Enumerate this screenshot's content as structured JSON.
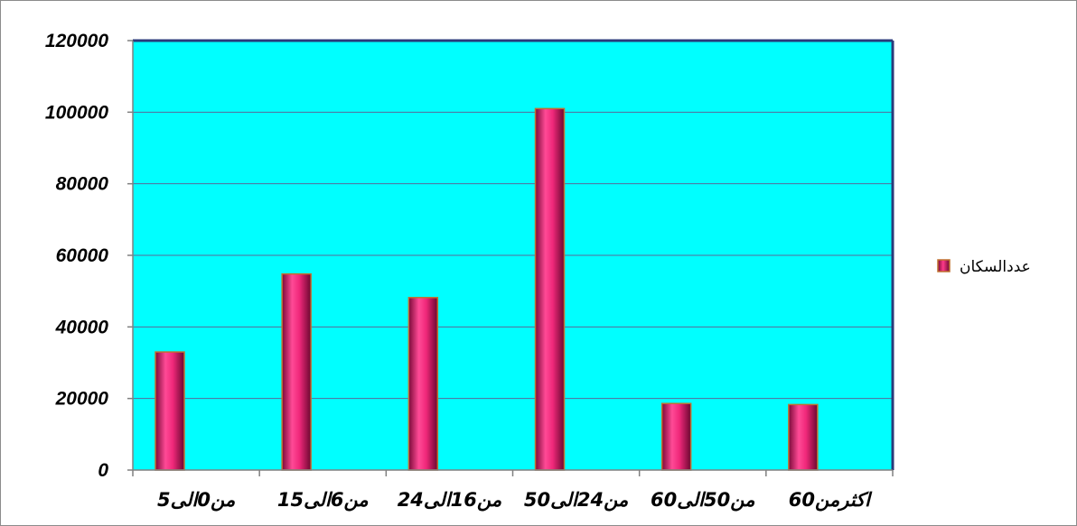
{
  "chart_data": {
    "type": "bar",
    "categories": [
      "من0الى5",
      "من6الى15",
      "من16الى24",
      "من24الى50",
      "من50الى60",
      "اكثرمن60"
    ],
    "series": [
      {
        "name": "عددالسكان",
        "values": [
          33000,
          54800,
          48200,
          101000,
          18600,
          18300
        ]
      }
    ],
    "ylim": [
      0,
      120000
    ],
    "yticks": [
      0,
      20000,
      40000,
      60000,
      80000,
      100000,
      120000
    ],
    "grid": true,
    "legend_position": "right",
    "colors": {
      "plot_background": "#00ffff",
      "bar_fill": "#e8206e",
      "bar_edge": "#c07030",
      "gridline": "#5a6a9a",
      "axis": "#808080",
      "legend_swatch": "#c0185a"
    }
  }
}
